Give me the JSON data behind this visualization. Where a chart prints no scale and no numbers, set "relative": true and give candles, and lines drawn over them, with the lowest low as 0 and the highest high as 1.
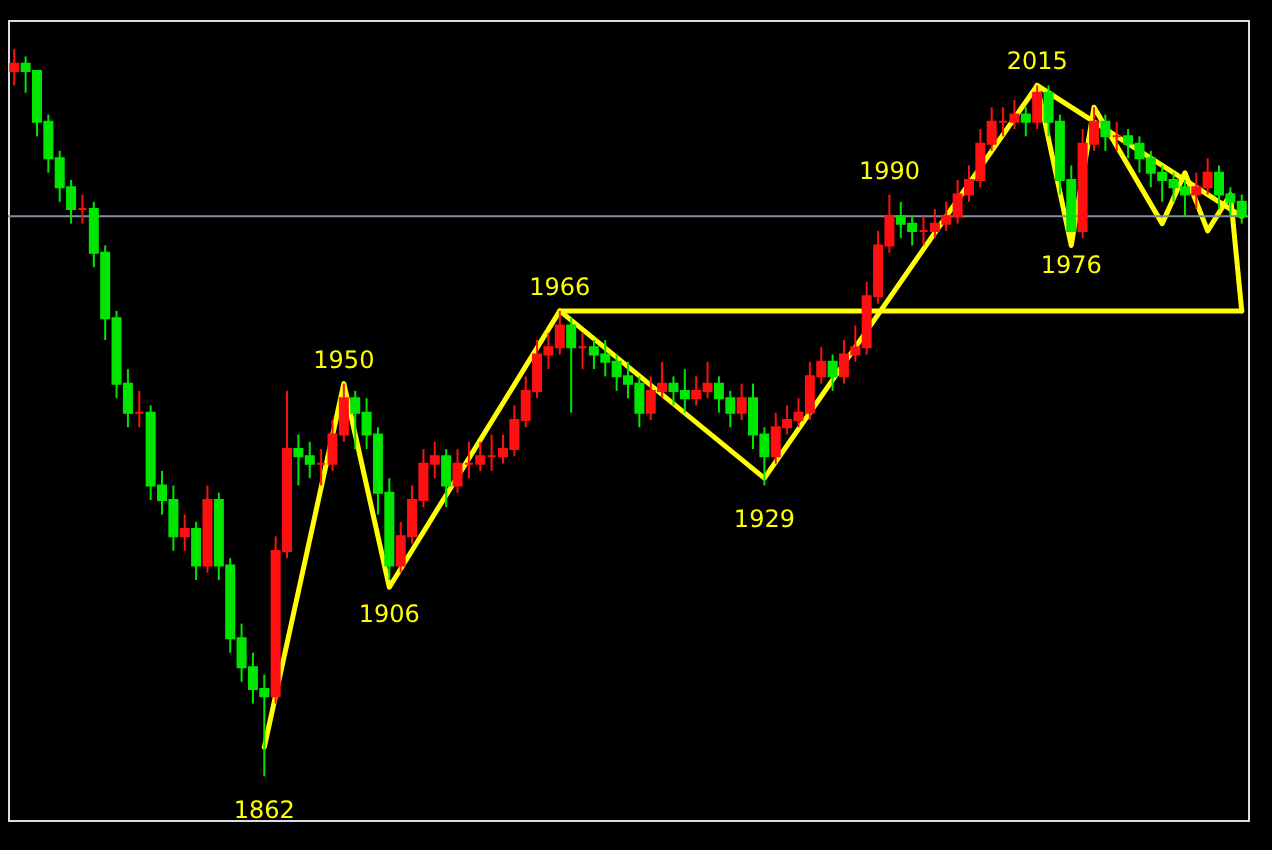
{
  "chart_data": {
    "type": "candlestick",
    "relative": true,
    "tick_labels": false,
    "grid": false,
    "categories": [
      null,
      null,
      null,
      null,
      null,
      null,
      null,
      null,
      null,
      null,
      null,
      null,
      null,
      null,
      null,
      null,
      null,
      null,
      null,
      null,
      null,
      null,
      null,
      null,
      null,
      null,
      null,
      null,
      null,
      null,
      null,
      null,
      null,
      null,
      null,
      null,
      null,
      null,
      null,
      null,
      null,
      null,
      null,
      null,
      null,
      null,
      null,
      null,
      null,
      null,
      null,
      null,
      null,
      null,
      null,
      null,
      null,
      null,
      null,
      null,
      null,
      null,
      null,
      null,
      null,
      null,
      null,
      null,
      null,
      null,
      null,
      null,
      null,
      null,
      null,
      null,
      null,
      null,
      null,
      null,
      null,
      null,
      null,
      null,
      null,
      null,
      null,
      null,
      null,
      null,
      null,
      null,
      null,
      null,
      null,
      null,
      null,
      null,
      null,
      null,
      null,
      null,
      null,
      null,
      null,
      null,
      null,
      null,
      null
    ],
    "ohlc": [
      [
        0.97,
        1.0,
        0.95,
        0.98
      ],
      [
        0.98,
        0.99,
        0.94,
        0.97
      ],
      [
        0.97,
        0.97,
        0.88,
        0.9
      ],
      [
        0.9,
        0.91,
        0.83,
        0.85
      ],
      [
        0.85,
        0.86,
        0.79,
        0.81
      ],
      [
        0.81,
        0.82,
        0.76,
        0.78
      ],
      [
        0.78,
        0.8,
        0.76,
        0.78
      ],
      [
        0.78,
        0.79,
        0.7,
        0.72
      ],
      [
        0.72,
        0.73,
        0.6,
        0.63
      ],
      [
        0.63,
        0.64,
        0.52,
        0.54
      ],
      [
        0.54,
        0.56,
        0.48,
        0.5
      ],
      [
        0.5,
        0.53,
        0.48,
        0.5
      ],
      [
        0.5,
        0.51,
        0.38,
        0.4
      ],
      [
        0.4,
        0.42,
        0.36,
        0.38
      ],
      [
        0.38,
        0.4,
        0.31,
        0.33
      ],
      [
        0.33,
        0.36,
        0.31,
        0.34
      ],
      [
        0.34,
        0.35,
        0.27,
        0.29
      ],
      [
        0.29,
        0.4,
        0.28,
        0.38
      ],
      [
        0.38,
        0.39,
        0.27,
        0.29
      ],
      [
        0.29,
        0.3,
        0.17,
        0.19
      ],
      [
        0.19,
        0.21,
        0.13,
        0.15
      ],
      [
        0.15,
        0.17,
        0.1,
        0.12
      ],
      [
        0.12,
        0.14,
        0.0,
        0.11
      ],
      [
        0.11,
        0.33,
        0.1,
        0.31
      ],
      [
        0.31,
        0.53,
        0.3,
        0.45
      ],
      [
        0.45,
        0.47,
        0.4,
        0.44
      ],
      [
        0.44,
        0.46,
        0.41,
        0.43
      ],
      [
        0.43,
        0.45,
        0.4,
        0.43
      ],
      [
        0.43,
        0.49,
        0.42,
        0.47
      ],
      [
        0.47,
        0.54,
        0.46,
        0.52
      ],
      [
        0.52,
        0.53,
        0.45,
        0.5
      ],
      [
        0.5,
        0.52,
        0.45,
        0.47
      ],
      [
        0.47,
        0.48,
        0.36,
        0.39
      ],
      [
        0.39,
        0.41,
        0.27,
        0.29
      ],
      [
        0.29,
        0.35,
        0.28,
        0.33
      ],
      [
        0.33,
        0.4,
        0.32,
        0.38
      ],
      [
        0.38,
        0.45,
        0.37,
        0.43
      ],
      [
        0.43,
        0.46,
        0.41,
        0.44
      ],
      [
        0.44,
        0.45,
        0.37,
        0.4
      ],
      [
        0.4,
        0.45,
        0.39,
        0.43
      ],
      [
        0.43,
        0.46,
        0.41,
        0.43
      ],
      [
        0.43,
        0.46,
        0.42,
        0.44
      ],
      [
        0.44,
        0.47,
        0.42,
        0.44
      ],
      [
        0.44,
        0.47,
        0.43,
        0.45
      ],
      [
        0.45,
        0.51,
        0.44,
        0.49
      ],
      [
        0.49,
        0.55,
        0.48,
        0.53
      ],
      [
        0.53,
        0.6,
        0.52,
        0.58
      ],
      [
        0.58,
        0.61,
        0.56,
        0.59
      ],
      [
        0.59,
        0.64,
        0.58,
        0.62
      ],
      [
        0.62,
        0.63,
        0.5,
        0.59
      ],
      [
        0.59,
        0.61,
        0.56,
        0.59
      ],
      [
        0.59,
        0.6,
        0.56,
        0.58
      ],
      [
        0.58,
        0.6,
        0.55,
        0.57
      ],
      [
        0.57,
        0.58,
        0.53,
        0.55
      ],
      [
        0.55,
        0.57,
        0.52,
        0.54
      ],
      [
        0.54,
        0.55,
        0.48,
        0.5
      ],
      [
        0.5,
        0.55,
        0.49,
        0.53
      ],
      [
        0.53,
        0.57,
        0.52,
        0.54
      ],
      [
        0.54,
        0.55,
        0.51,
        0.53
      ],
      [
        0.53,
        0.56,
        0.5,
        0.52
      ],
      [
        0.52,
        0.55,
        0.51,
        0.53
      ],
      [
        0.53,
        0.57,
        0.52,
        0.54
      ],
      [
        0.54,
        0.55,
        0.5,
        0.52
      ],
      [
        0.52,
        0.53,
        0.48,
        0.5
      ],
      [
        0.5,
        0.54,
        0.49,
        0.52
      ],
      [
        0.52,
        0.54,
        0.45,
        0.47
      ],
      [
        0.47,
        0.48,
        0.4,
        0.44
      ],
      [
        0.44,
        0.5,
        0.43,
        0.48
      ],
      [
        0.48,
        0.51,
        0.47,
        0.49
      ],
      [
        0.49,
        0.52,
        0.48,
        0.5
      ],
      [
        0.5,
        0.57,
        0.49,
        0.55
      ],
      [
        0.55,
        0.59,
        0.54,
        0.57
      ],
      [
        0.57,
        0.58,
        0.53,
        0.55
      ],
      [
        0.55,
        0.6,
        0.54,
        0.58
      ],
      [
        0.58,
        0.62,
        0.57,
        0.59
      ],
      [
        0.59,
        0.68,
        0.58,
        0.66
      ],
      [
        0.66,
        0.75,
        0.65,
        0.73
      ],
      [
        0.73,
        0.8,
        0.72,
        0.77
      ],
      [
        0.77,
        0.79,
        0.74,
        0.76
      ],
      [
        0.76,
        0.77,
        0.73,
        0.75
      ],
      [
        0.75,
        0.77,
        0.73,
        0.75
      ],
      [
        0.75,
        0.78,
        0.74,
        0.76
      ],
      [
        0.76,
        0.79,
        0.75,
        0.77
      ],
      [
        0.77,
        0.82,
        0.76,
        0.8
      ],
      [
        0.8,
        0.84,
        0.79,
        0.82
      ],
      [
        0.82,
        0.89,
        0.81,
        0.87
      ],
      [
        0.87,
        0.92,
        0.86,
        0.9
      ],
      [
        0.9,
        0.92,
        0.88,
        0.9
      ],
      [
        0.9,
        0.93,
        0.89,
        0.91
      ],
      [
        0.91,
        0.92,
        0.88,
        0.9
      ],
      [
        0.9,
        0.95,
        0.89,
        0.94
      ],
      [
        0.94,
        0.95,
        0.88,
        0.9
      ],
      [
        0.9,
        0.91,
        0.8,
        0.82
      ],
      [
        0.82,
        0.84,
        0.75,
        0.75
      ],
      [
        0.75,
        0.89,
        0.74,
        0.87
      ],
      [
        0.87,
        0.92,
        0.86,
        0.9
      ],
      [
        0.9,
        0.91,
        0.86,
        0.88
      ],
      [
        0.88,
        0.9,
        0.86,
        0.88
      ],
      [
        0.88,
        0.89,
        0.85,
        0.87
      ],
      [
        0.87,
        0.88,
        0.83,
        0.85
      ],
      [
        0.85,
        0.86,
        0.81,
        0.83
      ],
      [
        0.83,
        0.84,
        0.79,
        0.82
      ],
      [
        0.82,
        0.83,
        0.79,
        0.81
      ],
      [
        0.81,
        0.82,
        0.77,
        0.8
      ],
      [
        0.8,
        0.83,
        0.78,
        0.81
      ],
      [
        0.81,
        0.85,
        0.8,
        0.83
      ],
      [
        0.83,
        0.84,
        0.78,
        0.8
      ],
      [
        0.8,
        0.81,
        0.77,
        0.79
      ],
      [
        0.79,
        0.8,
        0.76,
        0.77
      ]
    ],
    "value_labels": [
      null,
      null,
      null,
      null,
      null,
      null,
      null,
      null,
      null,
      null,
      null,
      null,
      null,
      null,
      null,
      null,
      null,
      null,
      null,
      null,
      null,
      null,
      "1862",
      null,
      null,
      null,
      null,
      null,
      null,
      "1950",
      null,
      null,
      null,
      "1906",
      null,
      null,
      null,
      null,
      null,
      null,
      null,
      null,
      null,
      null,
      null,
      null,
      null,
      null,
      "1966",
      null,
      null,
      null,
      null,
      null,
      null,
      null,
      null,
      null,
      null,
      null,
      null,
      null,
      null,
      null,
      null,
      null,
      "1929",
      null,
      null,
      null,
      null,
      null,
      null,
      null,
      null,
      null,
      null,
      "1990",
      null,
      null,
      null,
      null,
      null,
      null,
      null,
      null,
      null,
      null,
      null,
      null,
      "2015",
      null,
      null,
      "1976",
      null,
      null,
      null,
      null,
      null,
      null,
      null,
      null,
      null,
      null,
      null,
      null,
      null,
      null,
      null
    ],
    "series": [
      {
        "type": "line",
        "color": "#ffff00",
        "values": [
          null,
          null,
          null,
          null,
          null,
          null,
          null,
          null,
          null,
          null,
          null,
          null,
          null,
          null,
          null,
          null,
          null,
          null,
          null,
          null,
          null,
          null,
          0.04,
          null,
          null,
          null,
          null,
          null,
          null,
          0.54,
          null,
          null,
          null,
          0.26,
          null,
          null,
          null,
          null,
          null,
          null,
          null,
          null,
          null,
          null,
          null,
          null,
          null,
          null,
          0.64,
          null,
          null,
          null,
          null,
          null,
          null,
          null,
          null,
          null,
          null,
          null,
          null,
          null,
          null,
          null,
          null,
          null,
          0.41,
          null,
          null,
          null,
          null,
          null,
          null,
          null,
          null,
          null,
          null,
          null,
          null,
          null,
          null,
          null,
          null,
          null,
          null,
          null,
          null,
          null,
          null,
          null,
          0.95,
          null,
          null,
          0.73,
          null,
          0.92,
          null,
          null,
          null,
          null,
          null,
          0.76,
          null,
          0.83,
          null,
          0.75,
          null,
          0.8,
          0.64
        ]
      },
      {
        "type": "line",
        "color": "#ffff00",
        "values": [
          null,
          null,
          null,
          null,
          null,
          null,
          null,
          null,
          null,
          null,
          null,
          null,
          null,
          null,
          null,
          null,
          null,
          null,
          null,
          null,
          null,
          null,
          null,
          null,
          null,
          null,
          null,
          null,
          null,
          null,
          null,
          null,
          null,
          null,
          null,
          null,
          null,
          null,
          null,
          null,
          null,
          null,
          null,
          null,
          null,
          null,
          null,
          null,
          0.64,
          null,
          null,
          null,
          null,
          null,
          null,
          null,
          null,
          null,
          null,
          null,
          null,
          null,
          null,
          null,
          null,
          null,
          null,
          null,
          null,
          null,
          null,
          null,
          null,
          null,
          null,
          null,
          null,
          null,
          null,
          null,
          null,
          null,
          null,
          null,
          null,
          null,
          null,
          null,
          null,
          null,
          null,
          null,
          null,
          null,
          null,
          null,
          null,
          null,
          null,
          null,
          null,
          null,
          null,
          null,
          null,
          null,
          null,
          null,
          0.64
        ]
      },
      {
        "type": "line",
        "color": "#ffff00",
        "values": [
          null,
          null,
          null,
          null,
          null,
          null,
          null,
          null,
          null,
          null,
          null,
          null,
          null,
          null,
          null,
          null,
          null,
          null,
          null,
          null,
          null,
          null,
          null,
          null,
          null,
          null,
          null,
          null,
          null,
          null,
          null,
          null,
          null,
          null,
          null,
          null,
          null,
          null,
          null,
          null,
          null,
          null,
          null,
          null,
          null,
          null,
          null,
          null,
          null,
          null,
          null,
          null,
          null,
          null,
          null,
          null,
          null,
          null,
          null,
          null,
          null,
          null,
          null,
          null,
          null,
          null,
          null,
          null,
          null,
          null,
          null,
          null,
          null,
          null,
          null,
          null,
          null,
          null,
          null,
          null,
          null,
          null,
          null,
          null,
          null,
          null,
          null,
          null,
          null,
          null,
          0.95,
          null,
          null,
          null,
          null,
          null,
          null,
          null,
          null,
          null,
          null,
          null,
          null,
          null,
          null,
          null,
          null,
          null,
          0.77
        ]
      }
    ],
    "ref_lines": [
      {
        "axis": "y",
        "value": 0.77,
        "color": "#8090a0"
      }
    ]
  }
}
